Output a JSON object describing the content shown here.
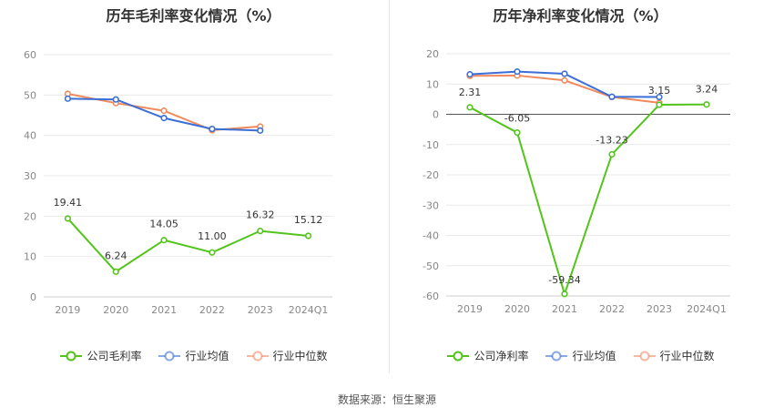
{
  "source_text": "数据来源：恒生聚源",
  "chart_data": [
    {
      "type": "line",
      "title": "历年毛利率变化情况（%）",
      "categories": [
        "2019",
        "2020",
        "2021",
        "2022",
        "2023",
        "2024Q1"
      ],
      "ylim": [
        0,
        60
      ],
      "yticks": [
        0,
        10,
        20,
        30,
        40,
        50,
        60
      ],
      "grid": true,
      "legend_position": "bottom",
      "series": [
        {
          "name": "公司毛利率",
          "color": "#52c41a",
          "values": [
            19.41,
            6.24,
            14.05,
            11.0,
            16.32,
            15.12
          ],
          "labels": [
            "19.41",
            "6.24",
            "14.05",
            "11.00",
            "16.32",
            "15.12"
          ]
        },
        {
          "name": "行业均值",
          "color": "#3b6fd6",
          "values": [
            49.1,
            48.9,
            44.3,
            41.6,
            41.2,
            null
          ]
        },
        {
          "name": "行业中位数",
          "color": "#f08a5d",
          "values": [
            50.3,
            48.0,
            46.1,
            41.3,
            42.2,
            null
          ]
        }
      ]
    },
    {
      "type": "line",
      "title": "历年净利率变化情况（%）",
      "categories": [
        "2019",
        "2020",
        "2021",
        "2022",
        "2023",
        "2024Q1"
      ],
      "ylim": [
        -60,
        20
      ],
      "yticks": [
        -60,
        -50,
        -40,
        -30,
        -20,
        -10,
        0,
        10,
        20
      ],
      "grid": true,
      "legend_position": "bottom",
      "series": [
        {
          "name": "公司净利率",
          "color": "#52c41a",
          "values": [
            2.31,
            -6.05,
            -59.34,
            -13.23,
            3.15,
            3.24
          ],
          "labels": [
            "2.31",
            "-6.05",
            "-59.34",
            "-13.23",
            "3.15",
            "3.24"
          ]
        },
        {
          "name": "行业均值",
          "color": "#3b6fd6",
          "values": [
            13.2,
            14.1,
            13.4,
            5.8,
            5.7,
            null
          ]
        },
        {
          "name": "行业中位数",
          "color": "#f08a5d",
          "values": [
            12.7,
            12.8,
            11.2,
            5.7,
            3.8,
            null
          ]
        }
      ]
    }
  ]
}
